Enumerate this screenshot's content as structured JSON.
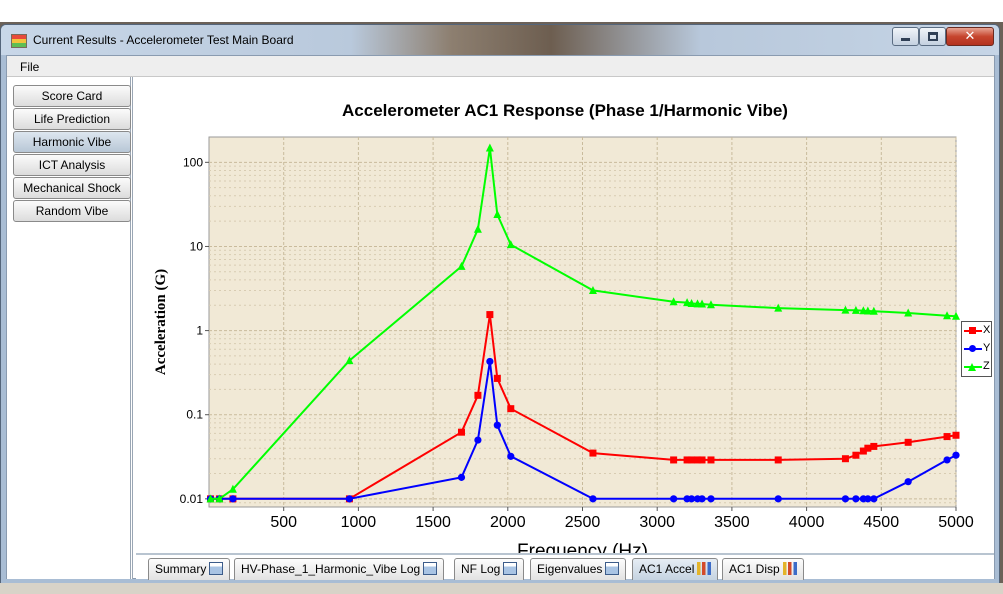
{
  "window": {
    "title": "Current Results - Accelerometer Test Main Board",
    "close_glyph": "✕"
  },
  "menu": {
    "file": "File"
  },
  "sidebar": {
    "items": [
      {
        "label": "Score Card"
      },
      {
        "label": "Life Prediction"
      },
      {
        "label": "Harmonic Vibe",
        "active": true
      },
      {
        "label": "ICT Analysis"
      },
      {
        "label": "Mechanical Shock"
      },
      {
        "label": "Random Vibe"
      }
    ]
  },
  "tabs": [
    {
      "label": "Summary",
      "icon": "document-icon"
    },
    {
      "label": "HV-Phase_1_Harmonic_Vibe Log",
      "icon": "document-icon"
    },
    {
      "label": "NF Log",
      "icon": "document-icon"
    },
    {
      "label": "Eigenvalues",
      "icon": "document-icon"
    },
    {
      "label": "AC1 Accel",
      "icon": "bar-chart-icon",
      "active": true
    },
    {
      "label": "AC1 Disp",
      "icon": "bar-chart-icon"
    }
  ],
  "colors": {
    "plot_background": "#f1e9d6",
    "series_x": "#ff0000",
    "series_y": "#0000ff",
    "series_z": "#00ff00"
  },
  "chart_data": {
    "type": "line",
    "title": "Accelerometer AC1 Response (Phase 1/Harmonic Vibe)",
    "xlabel": "Frequency (Hz)",
    "ylabel": "Acceleration (G)",
    "xlim": [
      0,
      5000
    ],
    "ylim": [
      0.008,
      200
    ],
    "yscale": "log",
    "grid": true,
    "legend_position": "right",
    "x_ticks": [
      "500",
      "1000",
      "1500",
      "2000",
      "2500",
      "3000",
      "3500",
      "4000",
      "4500",
      "5000"
    ],
    "y_ticks": [
      "0.01",
      "0.1",
      "1",
      "10",
      "100"
    ],
    "series": [
      {
        "name": "X",
        "color": "#ff0000",
        "marker": "square",
        "points": [
          [
            10,
            0.01
          ],
          [
            70,
            0.01
          ],
          [
            160,
            0.01
          ],
          [
            940,
            0.01
          ],
          [
            1690,
            0.062
          ],
          [
            1800,
            0.17
          ],
          [
            1880,
            1.55
          ],
          [
            1930,
            0.27
          ],
          [
            2020,
            0.118
          ],
          [
            2570,
            0.035
          ],
          [
            3110,
            0.029
          ],
          [
            3200,
            0.029
          ],
          [
            3230,
            0.029
          ],
          [
            3270,
            0.029
          ],
          [
            3300,
            0.029
          ],
          [
            3360,
            0.029
          ],
          [
            3810,
            0.029
          ],
          [
            4260,
            0.03
          ],
          [
            4330,
            0.033
          ],
          [
            4380,
            0.037
          ],
          [
            4410,
            0.04
          ],
          [
            4450,
            0.042
          ],
          [
            4680,
            0.047
          ],
          [
            4940,
            0.055
          ],
          [
            5000,
            0.057
          ]
        ]
      },
      {
        "name": "Y",
        "color": "#0000ff",
        "marker": "circle",
        "points": [
          [
            10,
            0.01
          ],
          [
            70,
            0.01
          ],
          [
            160,
            0.01
          ],
          [
            940,
            0.01
          ],
          [
            1690,
            0.018
          ],
          [
            1800,
            0.05
          ],
          [
            1880,
            0.43
          ],
          [
            1930,
            0.075
          ],
          [
            2020,
            0.032
          ],
          [
            2570,
            0.01
          ],
          [
            3110,
            0.01
          ],
          [
            3200,
            0.01
          ],
          [
            3230,
            0.01
          ],
          [
            3270,
            0.01
          ],
          [
            3300,
            0.01
          ],
          [
            3360,
            0.01
          ],
          [
            3810,
            0.01
          ],
          [
            4260,
            0.01
          ],
          [
            4330,
            0.01
          ],
          [
            4380,
            0.01
          ],
          [
            4410,
            0.01
          ],
          [
            4450,
            0.01
          ],
          [
            4680,
            0.016
          ],
          [
            4940,
            0.029
          ],
          [
            5000,
            0.033
          ]
        ]
      },
      {
        "name": "Z",
        "color": "#00ff00",
        "marker": "triangle",
        "points": [
          [
            10,
            0.01
          ],
          [
            70,
            0.01
          ],
          [
            160,
            0.013
          ],
          [
            940,
            0.44
          ],
          [
            1690,
            5.8
          ],
          [
            1800,
            16
          ],
          [
            1880,
            148
          ],
          [
            1930,
            24
          ],
          [
            2020,
            10.5
          ],
          [
            2570,
            3.0
          ],
          [
            3110,
            2.2
          ],
          [
            3200,
            2.15
          ],
          [
            3230,
            2.1
          ],
          [
            3270,
            2.08
          ],
          [
            3300,
            2.07
          ],
          [
            3360,
            2.03
          ],
          [
            3810,
            1.85
          ],
          [
            4260,
            1.75
          ],
          [
            4330,
            1.74
          ],
          [
            4380,
            1.72
          ],
          [
            4410,
            1.71
          ],
          [
            4450,
            1.7
          ],
          [
            4680,
            1.62
          ],
          [
            4940,
            1.5
          ],
          [
            5000,
            1.48
          ]
        ]
      }
    ]
  }
}
